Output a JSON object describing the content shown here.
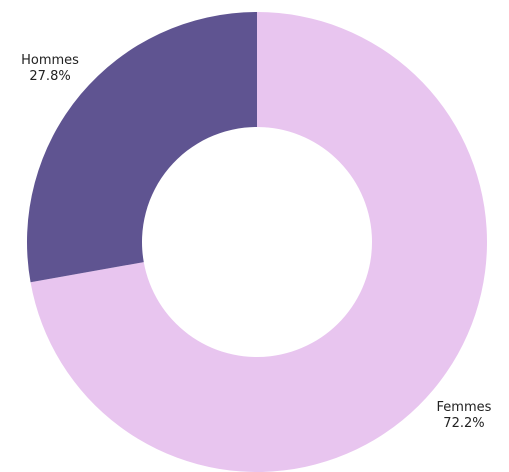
{
  "chart_data": {
    "type": "pie",
    "categories": [
      "Femmes",
      "Hommes"
    ],
    "values": [
      72.2,
      27.8
    ],
    "value_labels": [
      "72.2%",
      "27.8%"
    ],
    "colors": [
      "#e8c5ef",
      "#5f5491"
    ],
    "donut": true
  }
}
